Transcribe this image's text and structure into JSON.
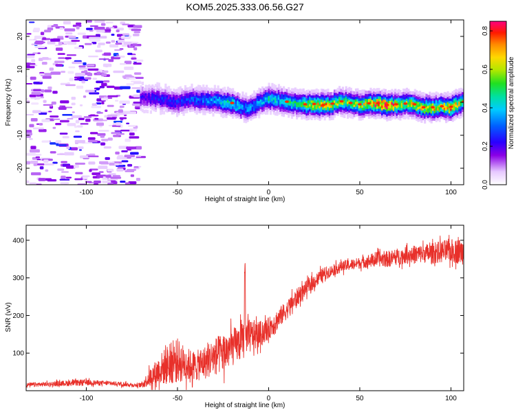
{
  "figure": {
    "title": "KOM5.2025.333.06.56.G27",
    "colors": {
      "snr_line": "#e8302a",
      "axis": "#000000"
    }
  },
  "chart_data": [
    {
      "type": "heatmap",
      "title": "",
      "xlabel": "Height of straight line (km)",
      "ylabel": "Frequency (Hz)",
      "xlim": [
        -133,
        107
      ],
      "ylim": [
        -25,
        25
      ],
      "x_ticks": [
        -100,
        -50,
        0,
        50,
        100
      ],
      "y_ticks": [
        -20,
        -10,
        0,
        10,
        20
      ],
      "colorbar": {
        "label": "Normalized spectral amplitude",
        "range": [
          0.0,
          0.85
        ],
        "ticks": [
          0.0,
          0.2,
          0.4,
          0.6,
          0.8
        ],
        "tick_labels": [
          "0.0",
          "0.2",
          "0.4",
          "0.6",
          "0.8"
        ]
      },
      "noise_region": {
        "x_range": [
          -133,
          -70
        ],
        "freq_range": [
          -25,
          25
        ],
        "amplitude": 0.08
      },
      "signal_trace": {
        "x": [
          -70,
          -60,
          -50,
          -40,
          -30,
          -20,
          -15,
          -10,
          -5,
          0,
          5,
          10,
          15,
          20,
          25,
          30,
          35,
          40,
          45,
          50,
          55,
          60,
          65,
          70,
          75,
          80,
          85,
          90,
          95,
          100,
          107
        ],
        "freq": [
          1.5,
          1.2,
          0.2,
          1.0,
          0.5,
          -0.2,
          -1.5,
          -1.8,
          0.0,
          1.2,
          0.8,
          0.2,
          -0.3,
          -0.6,
          -0.5,
          -0.8,
          -0.4,
          0.3,
          -0.2,
          -0.6,
          -0.3,
          -0.3,
          -0.8,
          -0.6,
          -0.4,
          -0.6,
          -1.5,
          -1.5,
          -1.2,
          -1.4,
          0.2
        ],
        "amplitude": [
          0.15,
          0.2,
          0.2,
          0.25,
          0.3,
          0.45,
          0.3,
          0.3,
          0.3,
          0.4,
          0.35,
          0.45,
          0.4,
          0.55,
          0.6,
          0.65,
          0.55,
          0.5,
          0.5,
          0.5,
          0.6,
          0.7,
          0.75,
          0.6,
          0.5,
          0.6,
          0.55,
          0.6,
          0.55,
          0.7,
          0.5
        ]
      }
    },
    {
      "type": "line",
      "title": "",
      "xlabel": "Height of straight line (km)",
      "ylabel": "SNR (v/v)",
      "xlim": [
        -133,
        107
      ],
      "ylim": [
        0,
        440
      ],
      "x_ticks": [
        -100,
        -50,
        0,
        50,
        100
      ],
      "y_ticks": [
        100,
        200,
        300,
        400
      ],
      "series": [
        {
          "name": "SNR",
          "x": [
            -133,
            -120,
            -110,
            -100,
            -90,
            -80,
            -75,
            -70,
            -65,
            -60,
            -55,
            -50,
            -45,
            -40,
            -35,
            -30,
            -25,
            -20,
            -15,
            -10,
            -5,
            0,
            5,
            10,
            15,
            20,
            25,
            30,
            35,
            40,
            45,
            50,
            55,
            60,
            65,
            70,
            75,
            80,
            85,
            90,
            95,
            100,
            107
          ],
          "values": [
            15,
            18,
            20,
            22,
            20,
            18,
            15,
            15,
            35,
            55,
            70,
            80,
            70,
            65,
            75,
            90,
            100,
            115,
            130,
            145,
            150,
            165,
            190,
            215,
            245,
            270,
            290,
            310,
            320,
            330,
            335,
            340,
            345,
            350,
            350,
            355,
            360,
            362,
            365,
            365,
            370,
            372,
            370
          ],
          "noise": [
            6,
            6,
            8,
            8,
            6,
            6,
            5,
            6,
            25,
            40,
            55,
            60,
            45,
            40,
            45,
            50,
            55,
            50,
            50,
            45,
            35,
            30,
            28,
            25,
            25,
            20,
            20,
            18,
            15,
            15,
            15,
            15,
            18,
            20,
            22,
            22,
            22,
            25,
            25,
            28,
            30,
            32,
            35
          ],
          "spike": {
            "x": -13,
            "value": 350
          }
        }
      ]
    }
  ]
}
